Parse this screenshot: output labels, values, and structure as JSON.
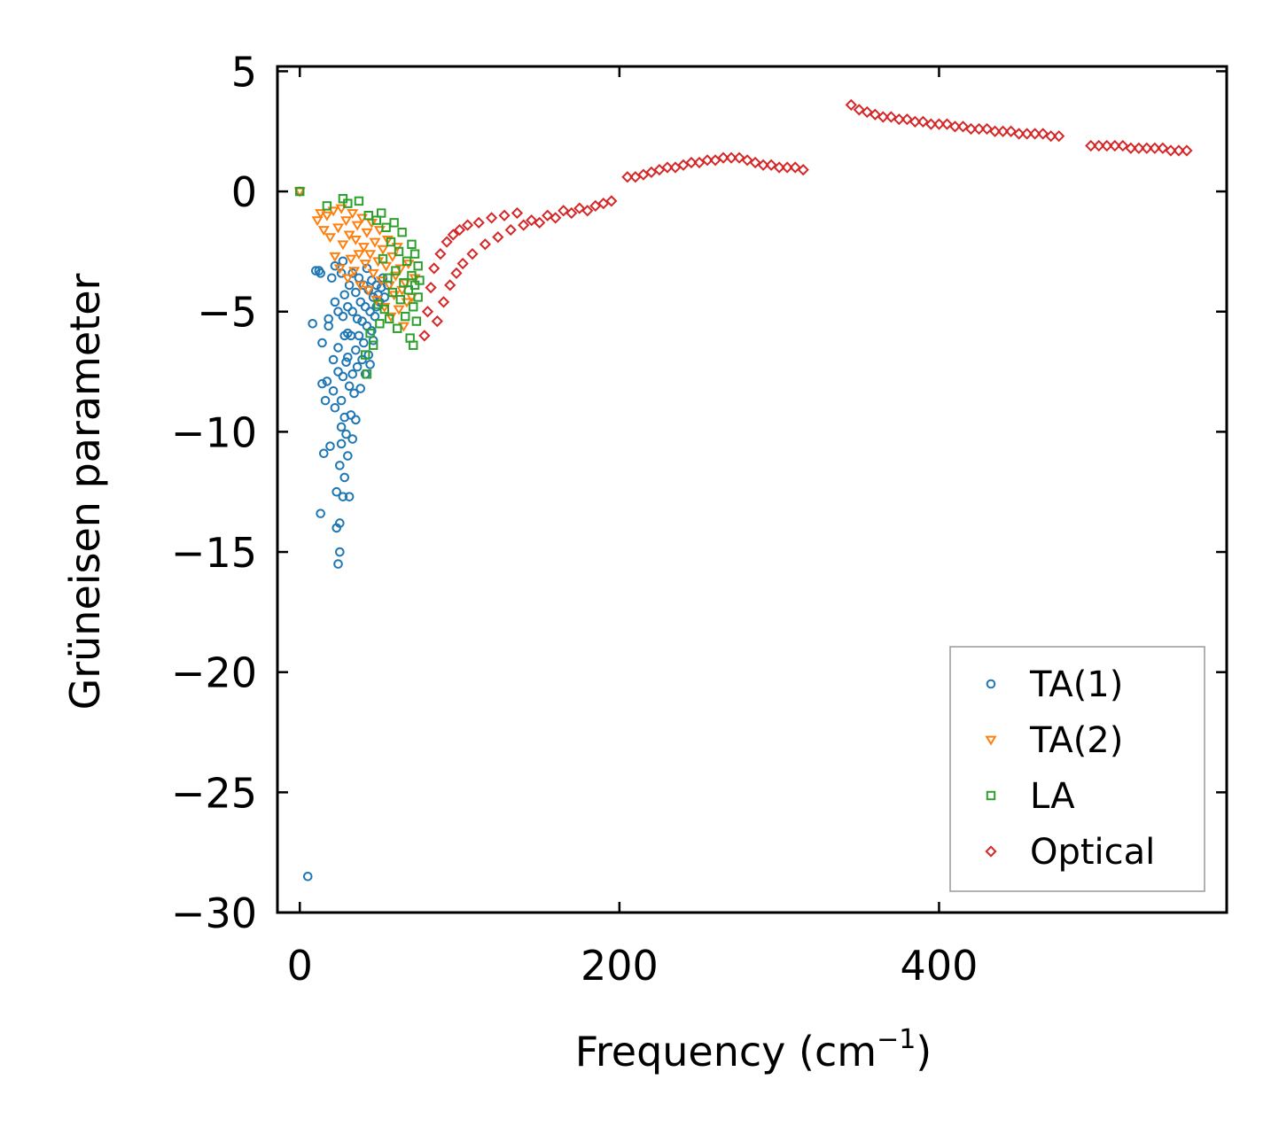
{
  "chart_data": {
    "type": "scatter",
    "title": "",
    "xlabel": "Frequency (cm",
    "xlabel_sup": "−1",
    "xlabel_tail": ")",
    "ylabel": "Grüneisen parameter",
    "xlim": [
      -14,
      580
    ],
    "ylim": [
      -30,
      5.2
    ],
    "xticks": [
      0,
      200,
      400
    ],
    "xtick_labels": [
      "0",
      "200",
      "400"
    ],
    "yticks": [
      5,
      0,
      -5,
      -10,
      -15,
      -20,
      -25,
      -30
    ],
    "ytick_labels": [
      "5",
      "0",
      "−5",
      "−10",
      "−15",
      "−20",
      "−25",
      "−30"
    ],
    "legend_position": "lower-right",
    "series": [
      {
        "name": "TA(1)",
        "marker": "circle",
        "color": "#1f77b4",
        "values": [
          [
            0,
            0
          ],
          [
            5,
            -28.5
          ],
          [
            8,
            -5.5
          ],
          [
            10,
            -3.3
          ],
          [
            12,
            -3.3
          ],
          [
            13,
            -3.4
          ],
          [
            13,
            -13.4
          ],
          [
            14,
            -6.3
          ],
          [
            14,
            -8.0
          ],
          [
            15,
            -10.9
          ],
          [
            16,
            -8.7
          ],
          [
            17,
            -7.9
          ],
          [
            18,
            -5.3
          ],
          [
            18,
            -5.6
          ],
          [
            19,
            -10.6
          ],
          [
            20,
            -3.6
          ],
          [
            21,
            -7.0
          ],
          [
            21,
            -8.3
          ],
          [
            22,
            -3.1
          ],
          [
            22,
            -4.6
          ],
          [
            22,
            -9.0
          ],
          [
            23,
            -12.5
          ],
          [
            23,
            -14.0
          ],
          [
            24,
            -5.0
          ],
          [
            24,
            -6.5
          ],
          [
            24,
            -7.5
          ],
          [
            24,
            -15.5
          ],
          [
            25,
            -11.4
          ],
          [
            25,
            -13.8
          ],
          [
            25,
            -15.0
          ],
          [
            26,
            -3.4
          ],
          [
            26,
            -8.7
          ],
          [
            26,
            -9.8
          ],
          [
            26,
            -10.5
          ],
          [
            27,
            -5.2
          ],
          [
            27,
            -7.7
          ],
          [
            27,
            -12.7
          ],
          [
            27,
            -2.9
          ],
          [
            28,
            -4.3
          ],
          [
            28,
            -6.0
          ],
          [
            28,
            -9.4
          ],
          [
            28,
            -11.9
          ],
          [
            29,
            -7.1
          ],
          [
            29,
            -10.1
          ],
          [
            30,
            -4.8
          ],
          [
            30,
            -5.9
          ],
          [
            30,
            -6.9
          ],
          [
            30,
            -11.0
          ],
          [
            31,
            -3.9
          ],
          [
            31,
            -8.1
          ],
          [
            31,
            -12.7
          ],
          [
            32,
            -6.0
          ],
          [
            32,
            -9.3
          ],
          [
            33,
            -3.4
          ],
          [
            33,
            -5.0
          ],
          [
            33,
            -7.6
          ],
          [
            33,
            -10.3
          ],
          [
            34,
            -8.4
          ],
          [
            35,
            -4.2
          ],
          [
            35,
            -6.6
          ],
          [
            35,
            -9.5
          ],
          [
            36,
            -5.3
          ],
          [
            36,
            -7.3
          ],
          [
            37,
            -3.6
          ],
          [
            37,
            -6.0
          ],
          [
            38,
            -4.6
          ],
          [
            38,
            -8.2
          ],
          [
            39,
            -5.4
          ],
          [
            39,
            -7.0
          ],
          [
            40,
            -3.9
          ],
          [
            40,
            -6.3
          ],
          [
            41,
            -4.8
          ],
          [
            41,
            -7.6
          ],
          [
            42,
            -5.6
          ],
          [
            42,
            -3.2
          ],
          [
            43,
            -4.1
          ],
          [
            43,
            -6.8
          ],
          [
            44,
            -5.0
          ],
          [
            44,
            -7.2
          ],
          [
            45,
            -3.7
          ],
          [
            45,
            -5.8
          ],
          [
            46,
            -4.4
          ],
          [
            46,
            -6.2
          ],
          [
            47,
            -5.2
          ],
          [
            48,
            -3.9
          ],
          [
            48,
            -4.8
          ],
          [
            49,
            -4.3
          ],
          [
            50,
            -4.6
          ],
          [
            51,
            -4.0
          ],
          [
            52,
            -3.6
          ],
          [
            53,
            -4.4
          ],
          [
            55,
            -3.9
          ]
        ]
      },
      {
        "name": "TA(2)",
        "marker": "triangle-down",
        "color": "#ff7f0e",
        "values": [
          [
            0,
            0
          ],
          [
            11,
            -1.2
          ],
          [
            13,
            -0.9
          ],
          [
            15,
            -1.6
          ],
          [
            17,
            -1.0
          ],
          [
            19,
            -1.9
          ],
          [
            21,
            -0.8
          ],
          [
            22,
            -2.7
          ],
          [
            24,
            -1.5
          ],
          [
            25,
            -3.2
          ],
          [
            26,
            -0.7
          ],
          [
            27,
            -2.2
          ],
          [
            29,
            -1.2
          ],
          [
            30,
            -3.6
          ],
          [
            31,
            -1.8
          ],
          [
            32,
            -2.8
          ],
          [
            33,
            -0.9
          ],
          [
            34,
            -3.3
          ],
          [
            35,
            -2.0
          ],
          [
            36,
            -1.4
          ],
          [
            37,
            -2.6
          ],
          [
            38,
            -3.9
          ],
          [
            39,
            -1.1
          ],
          [
            40,
            -2.3
          ],
          [
            41,
            -3.0
          ],
          [
            42,
            -1.7
          ],
          [
            43,
            -4.1
          ],
          [
            44,
            -2.6
          ],
          [
            45,
            -1.3
          ],
          [
            46,
            -3.4
          ],
          [
            47,
            -2.1
          ],
          [
            48,
            -4.5
          ],
          [
            49,
            -2.9
          ],
          [
            50,
            -1.6
          ],
          [
            51,
            -3.7
          ],
          [
            52,
            -2.4
          ],
          [
            53,
            -4.8
          ],
          [
            54,
            -3.1
          ],
          [
            55,
            -2.0
          ],
          [
            56,
            -3.9
          ],
          [
            57,
            -5.2
          ],
          [
            58,
            -2.7
          ],
          [
            59,
            -4.3
          ],
          [
            60,
            -3.5
          ],
          [
            61,
            -2.3
          ],
          [
            62,
            -4.9
          ],
          [
            63,
            -3.2
          ],
          [
            64,
            -4.1
          ],
          [
            65,
            -5.6
          ],
          [
            66,
            -3.8
          ],
          [
            67,
            -4.6
          ],
          [
            68,
            -3.0
          ],
          [
            70,
            -4.4
          ],
          [
            72,
            -3.6
          ]
        ]
      },
      {
        "name": "LA",
        "marker": "square",
        "color": "#2ca02c",
        "values": [
          [
            0,
            0
          ],
          [
            17,
            -0.6
          ],
          [
            27,
            -0.3
          ],
          [
            30,
            -0.5
          ],
          [
            37,
            -0.4
          ],
          [
            41,
            -6.8
          ],
          [
            42,
            -7.6
          ],
          [
            43,
            -1.0
          ],
          [
            44,
            -5.9
          ],
          [
            46,
            -6.4
          ],
          [
            48,
            -1.2
          ],
          [
            49,
            -4.7
          ],
          [
            50,
            -5.5
          ],
          [
            51,
            -0.9
          ],
          [
            52,
            -2.8
          ],
          [
            53,
            -4.9
          ],
          [
            54,
            -1.5
          ],
          [
            55,
            -3.6
          ],
          [
            56,
            -5.3
          ],
          [
            57,
            -2.1
          ],
          [
            58,
            -4.2
          ],
          [
            59,
            -1.3
          ],
          [
            60,
            -3.3
          ],
          [
            61,
            -5.7
          ],
          [
            62,
            -2.5
          ],
          [
            63,
            -4.5
          ],
          [
            64,
            -1.7
          ],
          [
            65,
            -3.8
          ],
          [
            66,
            -5.2
          ],
          [
            67,
            -2.9
          ],
          [
            68,
            -4.1
          ],
          [
            69,
            -6.1
          ],
          [
            70,
            -2.2
          ],
          [
            70,
            -3.5
          ],
          [
            71,
            -4.8
          ],
          [
            71,
            -6.4
          ],
          [
            72,
            -2.6
          ],
          [
            72,
            -3.9
          ],
          [
            73,
            -5.4
          ],
          [
            74,
            -3.1
          ],
          [
            74,
            -4.4
          ],
          [
            75,
            -3.7
          ]
        ]
      },
      {
        "name": "Optical",
        "marker": "diamond",
        "color": "#d62728",
        "values": [
          [
            78,
            -6.0
          ],
          [
            80,
            -5.0
          ],
          [
            82,
            -4.0
          ],
          [
            84,
            -3.2
          ],
          [
            86,
            -5.4
          ],
          [
            88,
            -2.6
          ],
          [
            90,
            -4.6
          ],
          [
            92,
            -2.1
          ],
          [
            94,
            -3.9
          ],
          [
            96,
            -1.8
          ],
          [
            98,
            -3.4
          ],
          [
            100,
            -1.6
          ],
          [
            102,
            -3.0
          ],
          [
            105,
            -1.4
          ],
          [
            108,
            -2.6
          ],
          [
            112,
            -1.3
          ],
          [
            116,
            -2.2
          ],
          [
            120,
            -1.1
          ],
          [
            124,
            -1.9
          ],
          [
            128,
            -1.0
          ],
          [
            132,
            -1.6
          ],
          [
            136,
            -0.9
          ],
          [
            140,
            -1.4
          ],
          [
            145,
            -1.2
          ],
          [
            150,
            -1.3
          ],
          [
            155,
            -1.0
          ],
          [
            160,
            -1.1
          ],
          [
            165,
            -0.8
          ],
          [
            170,
            -0.9
          ],
          [
            175,
            -0.7
          ],
          [
            180,
            -0.8
          ],
          [
            185,
            -0.6
          ],
          [
            190,
            -0.5
          ],
          [
            195,
            -0.4
          ],
          [
            205,
            0.6
          ],
          [
            210,
            0.6
          ],
          [
            215,
            0.7
          ],
          [
            220,
            0.8
          ],
          [
            225,
            0.9
          ],
          [
            230,
            1.0
          ],
          [
            235,
            1.0
          ],
          [
            240,
            1.1
          ],
          [
            245,
            1.2
          ],
          [
            250,
            1.2
          ],
          [
            255,
            1.3
          ],
          [
            260,
            1.3
          ],
          [
            265,
            1.4
          ],
          [
            270,
            1.4
          ],
          [
            275,
            1.4
          ],
          [
            280,
            1.3
          ],
          [
            285,
            1.2
          ],
          [
            290,
            1.1
          ],
          [
            295,
            1.1
          ],
          [
            300,
            1.0
          ],
          [
            305,
            1.0
          ],
          [
            310,
            1.0
          ],
          [
            315,
            0.9
          ],
          [
            345,
            3.6
          ],
          [
            350,
            3.4
          ],
          [
            355,
            3.3
          ],
          [
            360,
            3.2
          ],
          [
            365,
            3.1
          ],
          [
            370,
            3.1
          ],
          [
            375,
            3.0
          ],
          [
            380,
            3.0
          ],
          [
            385,
            2.9
          ],
          [
            390,
            2.9
          ],
          [
            395,
            2.8
          ],
          [
            400,
            2.8
          ],
          [
            405,
            2.8
          ],
          [
            410,
            2.7
          ],
          [
            415,
            2.7
          ],
          [
            420,
            2.6
          ],
          [
            425,
            2.6
          ],
          [
            430,
            2.6
          ],
          [
            435,
            2.5
          ],
          [
            440,
            2.5
          ],
          [
            445,
            2.5
          ],
          [
            450,
            2.4
          ],
          [
            455,
            2.4
          ],
          [
            460,
            2.4
          ],
          [
            465,
            2.4
          ],
          [
            470,
            2.3
          ],
          [
            475,
            2.3
          ],
          [
            495,
            1.9
          ],
          [
            500,
            1.9
          ],
          [
            505,
            1.9
          ],
          [
            510,
            1.9
          ],
          [
            515,
            1.9
          ],
          [
            520,
            1.8
          ],
          [
            525,
            1.8
          ],
          [
            530,
            1.8
          ],
          [
            535,
            1.8
          ],
          [
            540,
            1.8
          ],
          [
            545,
            1.7
          ],
          [
            550,
            1.7
          ],
          [
            555,
            1.7
          ]
        ]
      }
    ]
  }
}
